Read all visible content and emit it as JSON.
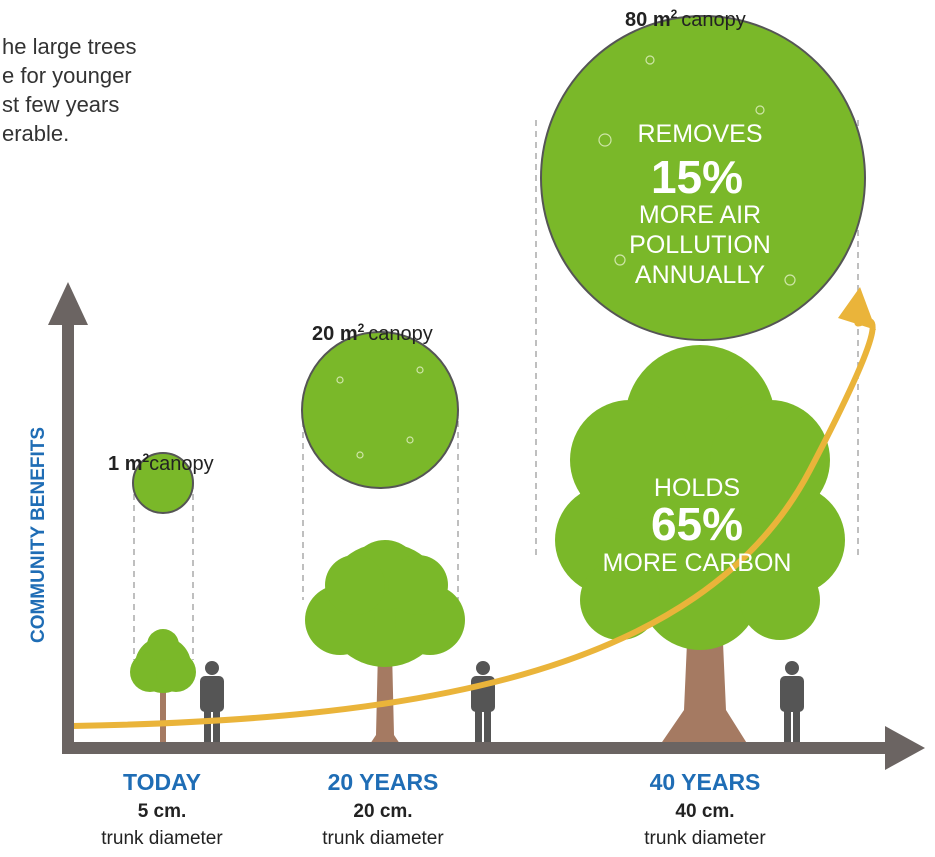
{
  "intro": {
    "lines": [
      "he large trees",
      "e for younger",
      "st few years",
      "erable."
    ]
  },
  "y_axis_label": "COMMUNITY BENEFITS",
  "canopy_word": "canopy",
  "canopy_unit": "m",
  "canopy_exp": "2",
  "stages": [
    {
      "label": "TODAY",
      "diameter": "5 cm.",
      "diameter_note": "trunk diameter",
      "canopy": "1"
    },
    {
      "label": "20 YEARS",
      "diameter": "20 cm.",
      "diameter_note": "trunk diameter",
      "canopy": "20"
    },
    {
      "label": "40 YEARS",
      "diameter": "40 cm.",
      "diameter_note": "trunk diameter",
      "canopy": "80"
    }
  ],
  "callouts": {
    "air": {
      "line1": "REMOVES",
      "figure": "15%",
      "line2": "MORE AIR",
      "line3": "POLLUTION",
      "line4": "ANNUALLY"
    },
    "carbon": {
      "line1": "HOLDS",
      "figure": "65%",
      "line2": "MORE CARBON"
    }
  }
}
